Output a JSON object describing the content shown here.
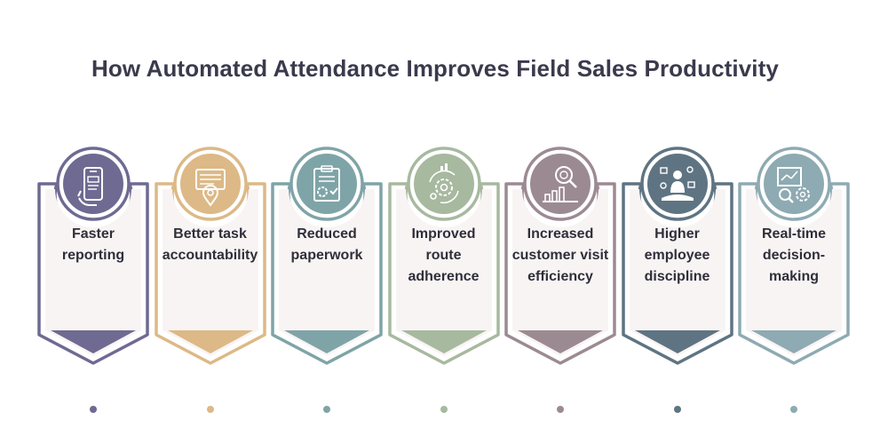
{
  "title": "How Automated Attendance Improves Field Sales Productivity",
  "items": [
    {
      "label": "Faster reporting",
      "color": "#6e6a92",
      "icon": "mobile-report-icon"
    },
    {
      "label": "Better task accountability",
      "color": "#dcb986",
      "icon": "task-location-icon"
    },
    {
      "label": "Reduced paperwork",
      "color": "#7fa4a7",
      "icon": "clipboard-gear-icon"
    },
    {
      "label": "Improved route adherence",
      "color": "#a7b99f",
      "icon": "route-gear-icon"
    },
    {
      "label": "Increased customer visit efficiency",
      "color": "#9c8a92",
      "icon": "growth-chart-search-icon"
    },
    {
      "label": "Higher employee discipline",
      "color": "#5f7482",
      "icon": "meditating-person-icon"
    },
    {
      "label": "Real-time decision-making",
      "color": "#8eaab2",
      "icon": "analysis-gears-icon"
    }
  ]
}
